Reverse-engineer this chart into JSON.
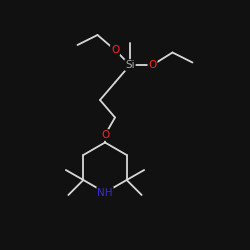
{
  "background_color": "#111111",
  "bond_color": "#d8d8d8",
  "atom_colors": {
    "O": "#ff2222",
    "Si": "#aaaaaa",
    "N": "#3333cc",
    "C": "#d8d8d8"
  },
  "figsize": [
    2.5,
    2.5
  ],
  "dpi": 100
}
